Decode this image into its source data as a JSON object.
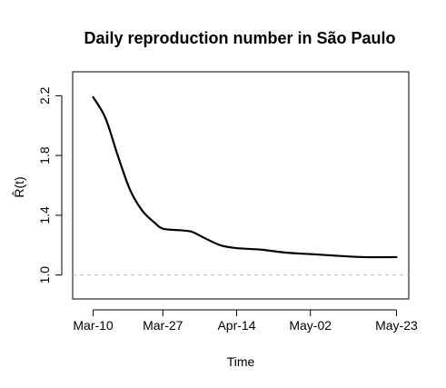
{
  "chart_data": {
    "type": "line",
    "title": "Daily reproduction number in São Paulo",
    "xlabel": "Time",
    "ylabel": "R̂(t)",
    "x_tick_labels": [
      "Mar-10",
      "Mar-27",
      "Apr-14",
      "May-02",
      "May-23"
    ],
    "x_tick_dates": [
      "2020-03-10",
      "2020-03-27",
      "2020-04-14",
      "2020-05-02",
      "2020-05-23"
    ],
    "x_range": [
      "2020-03-05",
      "2020-05-26"
    ],
    "y_ticks": [
      1.0,
      1.4,
      1.8,
      2.2
    ],
    "y_tick_labels": [
      "1.0",
      "1.4",
      "1.8",
      "2.2"
    ],
    "ylim": [
      0.84,
      2.36
    ],
    "reference_line": {
      "y": 1.0,
      "style": "dashed",
      "color": "#bbbbbb"
    },
    "series": [
      {
        "color": "#000000",
        "x": [
          "2020-03-10",
          "2020-03-13",
          "2020-03-16",
          "2020-03-19",
          "2020-03-22",
          "2020-03-25",
          "2020-03-27",
          "2020-03-31",
          "2020-04-03",
          "2020-04-06",
          "2020-04-10",
          "2020-04-14",
          "2020-04-20",
          "2020-04-26",
          "2020-05-02",
          "2020-05-08",
          "2020-05-15",
          "2020-05-23"
        ],
        "y": [
          2.19,
          2.05,
          1.8,
          1.57,
          1.43,
          1.35,
          1.31,
          1.3,
          1.29,
          1.25,
          1.2,
          1.18,
          1.17,
          1.15,
          1.14,
          1.13,
          1.12,
          1.12
        ]
      }
    ]
  }
}
